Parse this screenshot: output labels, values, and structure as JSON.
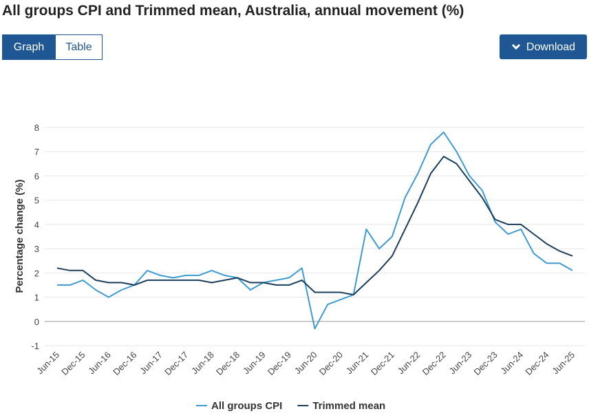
{
  "header": {
    "title": "All groups CPI and Trimmed mean, Australia, annual movement (%)"
  },
  "buttons": {
    "graph": "Graph",
    "table": "Table",
    "download": "Download"
  },
  "chart_data": {
    "type": "line",
    "y_label": "Percentage change (%)",
    "categories": [
      "Jun-15",
      null,
      "Dec-15",
      null,
      "Jun-16",
      null,
      "Dec-16",
      null,
      "Jun-17",
      null,
      "Dec-17",
      null,
      "Jun-18",
      null,
      "Dec-18",
      null,
      "Jun-19",
      null,
      "Dec-19",
      null,
      "Jun-20",
      null,
      "Dec-20",
      null,
      "Jun-21",
      null,
      "Dec-21",
      null,
      "Jun-22",
      null,
      "Dec-22",
      null,
      "Jun-23",
      null,
      "Dec-23",
      null,
      "Jun-24",
      null,
      "Dec-24",
      null,
      "Jun-25"
    ],
    "series": [
      {
        "name": "All groups CPI",
        "color": "#3d9bd0",
        "values": [
          1.5,
          1.5,
          1.7,
          1.3,
          1.0,
          1.3,
          1.5,
          2.1,
          1.9,
          1.8,
          1.9,
          1.9,
          2.1,
          1.9,
          1.8,
          1.3,
          1.6,
          1.7,
          1.8,
          2.2,
          -0.3,
          0.7,
          0.9,
          1.1,
          3.8,
          3.0,
          3.5,
          5.1,
          6.1,
          7.3,
          7.8,
          7.0,
          6.0,
          5.4,
          4.1,
          3.6,
          3.8,
          2.8,
          2.4,
          2.4,
          2.1
        ]
      },
      {
        "name": "Trimmed mean",
        "color": "#1b3d5c",
        "values": [
          2.2,
          2.1,
          2.1,
          1.7,
          1.6,
          1.6,
          1.5,
          1.7,
          1.7,
          1.7,
          1.7,
          1.7,
          1.6,
          1.7,
          1.8,
          1.6,
          1.6,
          1.5,
          1.5,
          1.7,
          1.2,
          1.2,
          1.2,
          1.1,
          1.6,
          2.1,
          2.7,
          3.8,
          4.9,
          6.1,
          6.8,
          6.5,
          5.8,
          5.1,
          4.2,
          4.0,
          4.0,
          3.6,
          3.2,
          2.9,
          2.7
        ]
      }
    ],
    "ylim": [
      -1,
      8
    ],
    "yticks": [
      -1,
      0,
      1,
      2,
      3,
      4,
      5,
      6,
      7,
      8
    ],
    "grid": true
  }
}
